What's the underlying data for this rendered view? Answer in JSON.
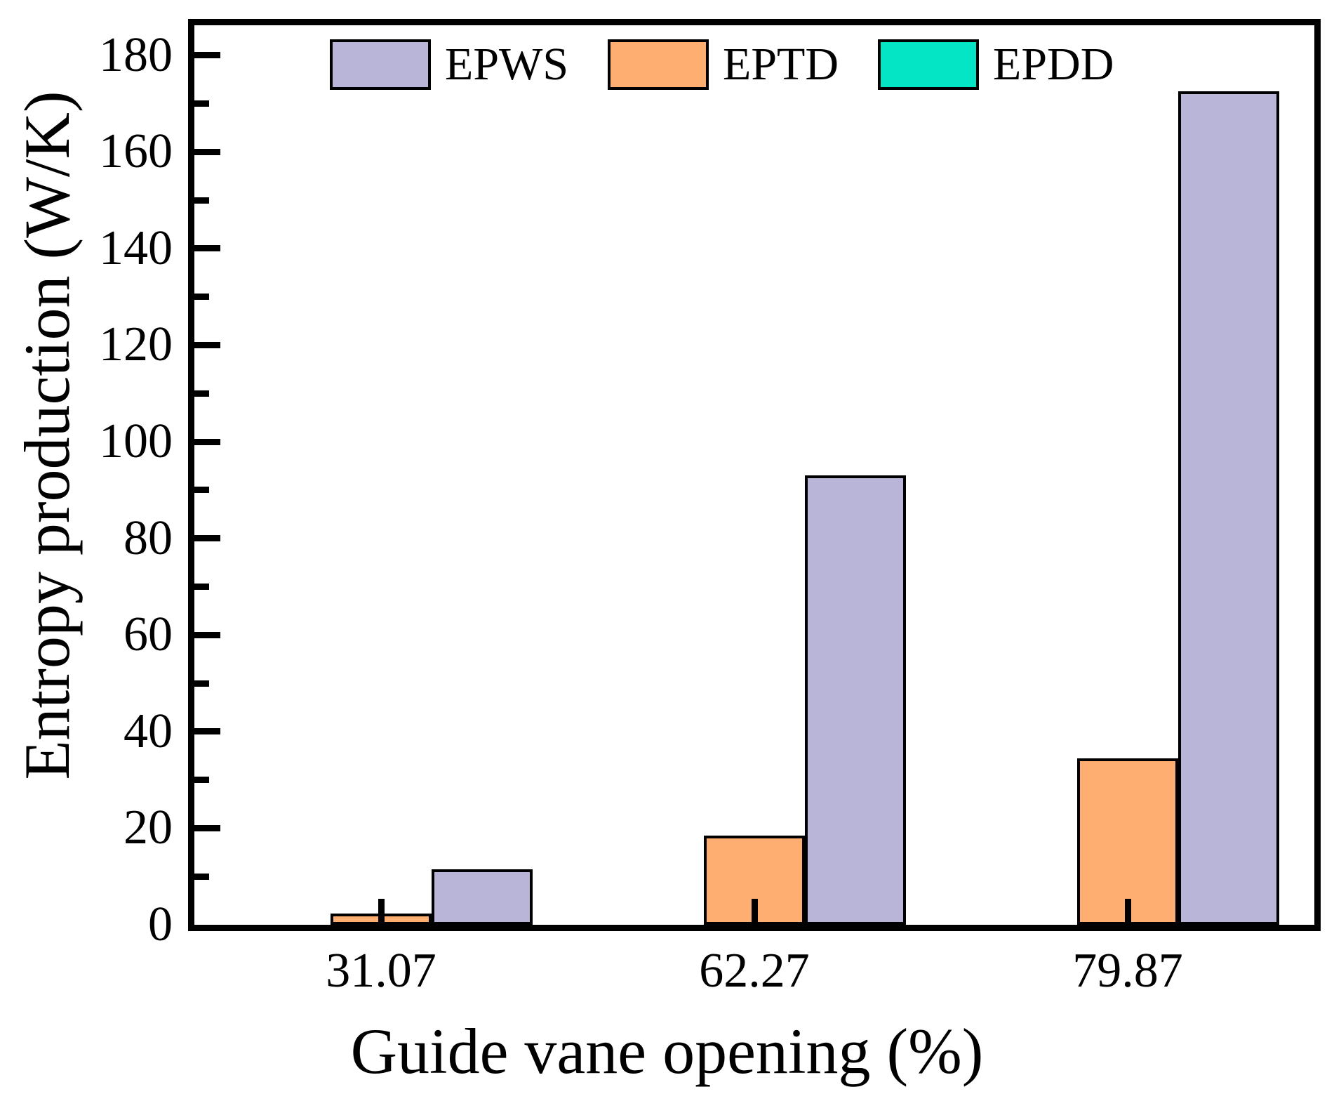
{
  "chart_data": {
    "type": "bar",
    "title": "",
    "xlabel": "Guide vane opening (%)",
    "ylabel": "Entropy production (W/K)",
    "categories": [
      "31.07",
      "62.27",
      "79.87"
    ],
    "series": [
      {
        "name": "EPWS",
        "color": "#b9b5d9",
        "values": [
          11.5,
          93.0,
          172.5
        ]
      },
      {
        "name": "EPTD",
        "color": "#fdae70",
        "values": [
          2.3,
          18.5,
          34.5
        ]
      },
      {
        "name": "EPDD",
        "color": "#04e5c6",
        "values": [
          0,
          0,
          0
        ]
      }
    ],
    "bar_plot_order_left_to_right": [
      "EPDD",
      "EPTD",
      "EPWS"
    ],
    "ylim": [
      0,
      186
    ],
    "yticks_major": [
      0,
      20,
      40,
      60,
      80,
      100,
      120,
      140,
      160,
      180
    ],
    "yticks_minor": [
      10,
      30,
      50,
      70,
      90,
      110,
      130,
      150,
      170
    ],
    "bar_outline_color": "#000000",
    "frame_color": "#000000",
    "background_color": "#ffffff",
    "legend_position": "top-inside",
    "grid": false
  }
}
